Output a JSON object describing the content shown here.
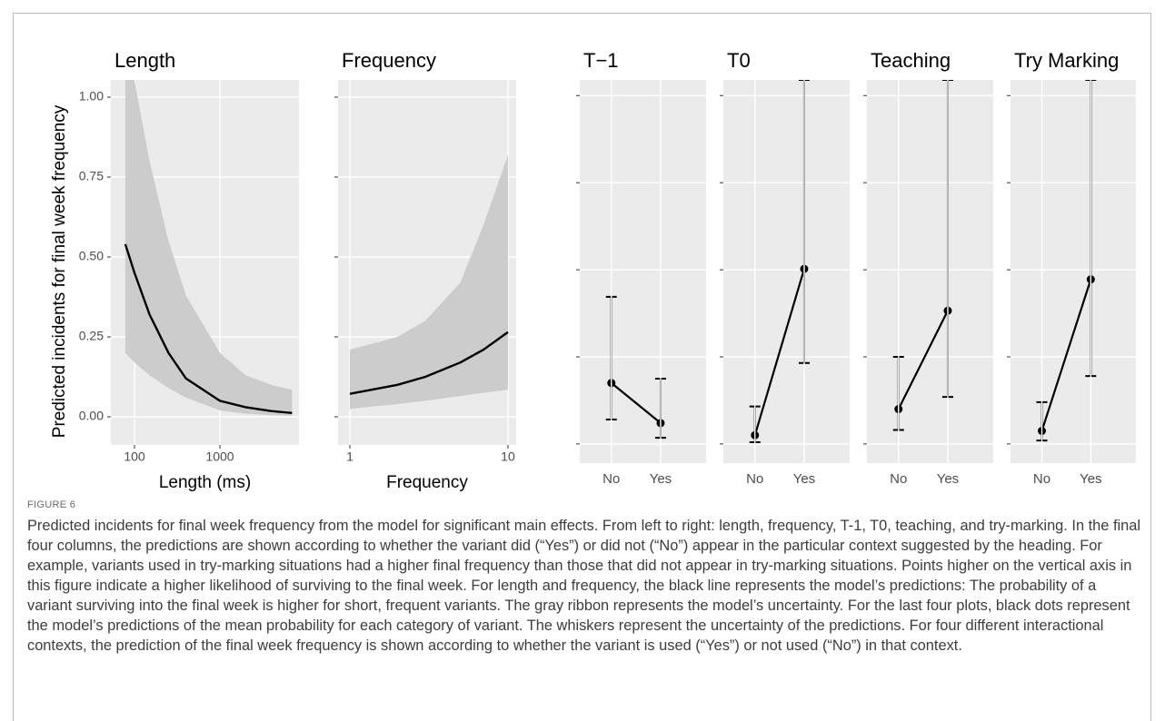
{
  "figure_label": "FIGURE 6",
  "caption": "Predicted incidents for final week frequency from the model for significant main effects. From left to right: length, frequency, T-1, T0, teaching, and try-marking. In the final four columns, the predictions are shown according to whether the variant did (“Yes”) or did not (“No”) appear in the particular context suggested by the heading. For example, variants used in try-marking situations had a higher final frequency than those that did not appear in try-marking situations. Points higher on the vertical axis in this figure indicate a higher likelihood of surviving to the final week. For length and frequency, the black line represents the model’s predictions: The probability of a variant surviving into the final week is higher for short, frequent variants. The gray ribbon represents the model’s uncertainty. For the last four plots, black dots represent the model’s predictions of the mean probability for each category of variant. The whiskers represent the uncertainty of the predictions. For four different interactional contexts, the prediction of the final week frequency is shown according to whether the variant is used (“Yes”) or not used (“No”) in that context.",
  "chart_data": [
    {
      "type": "ribbon-line",
      "title": "Length",
      "x_label": "Length (ms)",
      "y_label": "Predicted incidents for final week frequency",
      "x_scale": "log",
      "x": [
        78,
        100,
        150,
        250,
        400,
        1000,
        2000,
        4000,
        7000
      ],
      "values": [
        0.54,
        0.45,
        0.32,
        0.2,
        0.12,
        0.05,
        0.03,
        0.018,
        0.012
      ],
      "band": {
        "lower": [
          0.2,
          0.17,
          0.13,
          0.09,
          0.06,
          0.02,
          0.01,
          0.005,
          0.003
        ],
        "upper": [
          1.3,
          1.05,
          0.8,
          0.55,
          0.38,
          0.2,
          0.13,
          0.1,
          0.085
        ]
      },
      "color": "#000000",
      "band_color": "#cccccc",
      "background": "#ebebeb",
      "grid": true,
      "xlim": [
        52.8,
        8440
      ],
      "xticks": [
        100,
        1000
      ],
      "ylim": [
        -0.088,
        1.054
      ],
      "yticks": [
        {
          "value": 0,
          "label": "0.00"
        },
        0.25,
        {
          "value": 0.5,
          "label": "0.50"
        },
        0.75,
        {
          "value": 1,
          "label": "1.00"
        }
      ]
    },
    {
      "type": "ribbon-line",
      "title": "Frequency",
      "x_label": "Frequency",
      "x_scale": "log",
      "x": [
        1,
        2,
        3,
        5,
        7,
        10
      ],
      "values": [
        0.072,
        0.1,
        0.125,
        0.17,
        0.21,
        0.265
      ],
      "band": {
        "lower": [
          0.025,
          0.04,
          0.05,
          0.065,
          0.075,
          0.085
        ],
        "upper": [
          0.21,
          0.25,
          0.3,
          0.42,
          0.6,
          0.82
        ]
      },
      "color": "#000000",
      "band_color": "#cccccc",
      "background": "#ebebeb",
      "grid": true,
      "xlim": [
        0.842,
        11.27
      ],
      "xticks": [
        1,
        10
      ],
      "ylim": [
        -0.088,
        1.054
      ],
      "yticks": [
        0,
        0.25,
        0.5,
        0.75,
        1
      ]
    },
    {
      "type": "pointrange",
      "title": "T−1",
      "categories": [
        "No",
        "Yes"
      ],
      "values": [
        0.7,
        0.24
      ],
      "lower": [
        0.28,
        0.07
      ],
      "upper": [
        1.69,
        0.75
      ],
      "color": "#000000",
      "background": "#ebebeb",
      "grid": true,
      "ylim": [
        -0.22,
        4.18
      ],
      "yticks": [
        0,
        1,
        2,
        3,
        4
      ]
    },
    {
      "type": "pointrange",
      "title": "T0",
      "categories": [
        "No",
        "Yes"
      ],
      "values": [
        0.1,
        2.01
      ],
      "lower": [
        0.02,
        0.93
      ],
      "upper": [
        0.43,
        4.18
      ],
      "color": "#000000",
      "background": "#ebebeb",
      "grid": true,
      "ylim": [
        -0.22,
        4.18
      ],
      "yticks": [
        0,
        1,
        2,
        3,
        4
      ]
    },
    {
      "type": "pointrange",
      "title": "Teaching",
      "categories": [
        "No",
        "Yes"
      ],
      "values": [
        0.4,
        1.53
      ],
      "lower": [
        0.16,
        0.54
      ],
      "upper": [
        1.0,
        4.18
      ],
      "color": "#000000",
      "background": "#ebebeb",
      "grid": true,
      "ylim": [
        -0.22,
        4.18
      ],
      "yticks": [
        0,
        1,
        2,
        3,
        4
      ]
    },
    {
      "type": "pointrange",
      "title": "Try Marking",
      "categories": [
        "No",
        "Yes"
      ],
      "values": [
        0.15,
        1.89
      ],
      "lower": [
        0.04,
        0.78
      ],
      "upper": [
        0.48,
        4.18
      ],
      "color": "#000000",
      "background": "#ebebeb",
      "grid": true,
      "ylim": [
        -0.22,
        4.18
      ],
      "yticks": [
        0,
        1,
        2,
        3,
        4
      ]
    }
  ]
}
